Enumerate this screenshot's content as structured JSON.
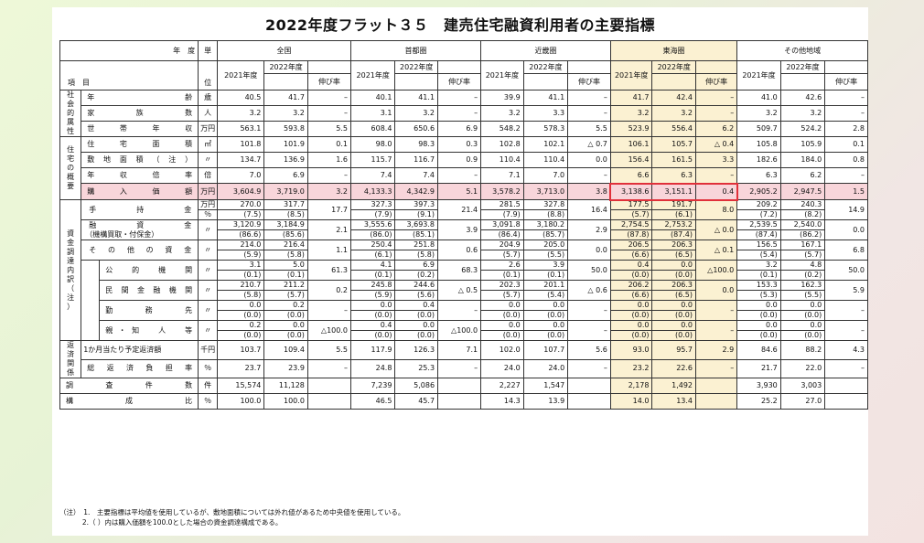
{
  "title": "2022年度フラット３５　建売住宅融資利用者の主要指標",
  "header": {
    "nendo": "年　度",
    "koumoku": "項　目",
    "tani_top": "単",
    "tani_bottom": "位",
    "regions": [
      "全国",
      "首都圏",
      "近畿圏",
      "東海圏",
      "その他地域"
    ],
    "y2021": "2021年度",
    "y2022": "2022年度",
    "growth": "伸び率"
  },
  "groups": {
    "shakai": "社会的属性",
    "jutaku": "住宅の概要",
    "shikin": "資金調達内訳（注）",
    "hensai": "返済関係"
  },
  "rows": [
    {
      "label": "年　　　齢",
      "unit": "歳",
      "v": [
        "40.5",
        "41.7",
        "–",
        "40.1",
        "41.1",
        "–",
        "39.9",
        "41.1",
        "–",
        "41.7",
        "42.4",
        "–",
        "41.0",
        "42.6",
        "–"
      ]
    },
    {
      "label": "家　族　数",
      "unit": "人",
      "v": [
        "3.2",
        "3.2",
        "–",
        "3.1",
        "3.2",
        "–",
        "3.2",
        "3.3",
        "–",
        "3.2",
        "3.2",
        "–",
        "3.2",
        "3.2",
        "–"
      ]
    },
    {
      "label": "世　帯　年　収",
      "unit": "万円",
      "v": [
        "563.1",
        "593.8",
        "5.5",
        "608.4",
        "650.6",
        "6.9",
        "548.2",
        "578.3",
        "5.5",
        "523.9",
        "556.4",
        "6.2",
        "509.7",
        "524.2",
        "2.8"
      ]
    },
    {
      "label": "住　宅　面　積",
      "unit": "㎡",
      "v": [
        "101.8",
        "101.9",
        "0.1",
        "98.0",
        "98.3",
        "0.3",
        "102.8",
        "102.1",
        "△ 0.7",
        "106.1",
        "105.7",
        "△ 0.4",
        "105.8",
        "105.9",
        "0.1"
      ]
    },
    {
      "label": "敷地面積（注）",
      "unit": "〃",
      "v": [
        "134.7",
        "136.9",
        "1.6",
        "115.7",
        "116.7",
        "0.9",
        "110.4",
        "110.4",
        "0.0",
        "156.4",
        "161.5",
        "3.3",
        "182.6",
        "184.0",
        "0.8"
      ]
    },
    {
      "label": "年　収　倍　率",
      "unit": "倍",
      "v": [
        "7.0",
        "6.9",
        "–",
        "7.4",
        "7.4",
        "–",
        "7.1",
        "7.0",
        "–",
        "6.6",
        "6.3",
        "–",
        "6.3",
        "6.2",
        "–"
      ]
    },
    {
      "label": "購　入　価　額",
      "unit": "万円",
      "v": [
        "3,604.9",
        "3,719.0",
        "3.2",
        "4,133.3",
        "4,342.9",
        "5.1",
        "3,578.2",
        "3,713.0",
        "3.8",
        "3,138.6",
        "3,151.1",
        "0.4",
        "2,905.2",
        "2,947.5",
        "1.5"
      ]
    },
    {
      "label": "手　持　金",
      "unit": "万円",
      "unit2": "％",
      "v": [
        "270.0",
        "317.7",
        "17.7",
        "327.3",
        "397.3",
        "21.4",
        "281.5",
        "327.8",
        "16.4",
        "177.5",
        "191.7",
        "8.0",
        "209.2",
        "240.3",
        "14.9"
      ],
      "p": [
        "7.5",
        "8.5",
        "7.9",
        "9.1",
        "7.9",
        "8.8",
        "5.7",
        "6.1",
        "7.2",
        "8.2"
      ]
    },
    {
      "label": "融　資　金",
      "sublabel": "（機構買取・付保金）",
      "unit": "〃",
      "v": [
        "3,120.9",
        "3,184.9",
        "2.1",
        "3,555.6",
        "3,693.8",
        "3.9",
        "3,091.8",
        "3,180.2",
        "2.9",
        "2,754.5",
        "2,753.2",
        "△ 0.0",
        "2,539.5",
        "2,540.0",
        "0.0"
      ],
      "p": [
        "86.6",
        "85.6",
        "86.0",
        "85.1",
        "86.4",
        "85.7",
        "87.8",
        "87.4",
        "87.4",
        "86.2"
      ]
    },
    {
      "label": "その他の資金",
      "unit": "〃",
      "v": [
        "214.0",
        "216.4",
        "1.1",
        "250.4",
        "251.8",
        "0.6",
        "204.9",
        "205.0",
        "0.0",
        "206.5",
        "206.3",
        "△ 0.1",
        "156.5",
        "167.1",
        "6.8"
      ],
      "p": [
        "5.9",
        "5.8",
        "6.1",
        "5.8",
        "5.7",
        "5.5",
        "6.6",
        "6.5",
        "5.4",
        "5.7"
      ]
    },
    {
      "label": "公　的　機　関",
      "unit": "〃",
      "v": [
        "3.1",
        "5.0",
        "61.3",
        "4.1",
        "6.9",
        "68.3",
        "2.6",
        "3.9",
        "50.0",
        "0.4",
        "0.0",
        "△100.0",
        "3.2",
        "4.8",
        "50.0"
      ],
      "p": [
        "0.1",
        "0.1",
        "0.1",
        "0.2",
        "0.1",
        "0.1",
        "0.0",
        "0.0",
        "0.1",
        "0.2"
      ]
    },
    {
      "label": "民間金融機関",
      "unit": "〃",
      "v": [
        "210.7",
        "211.2",
        "0.2",
        "245.8",
        "244.6",
        "△ 0.5",
        "202.3",
        "201.1",
        "△ 0.6",
        "206.2",
        "206.3",
        "0.0",
        "153.3",
        "162.3",
        "5.9"
      ],
      "p": [
        "5.8",
        "5.7",
        "5.9",
        "5.6",
        "5.7",
        "5.4",
        "6.6",
        "6.5",
        "5.3",
        "5.5"
      ]
    },
    {
      "label": "勤　務　先",
      "unit": "〃",
      "v": [
        "0.0",
        "0.2",
        "–",
        "0.0",
        "0.4",
        "–",
        "0.0",
        "0.0",
        "–",
        "0.0",
        "0.0",
        "–",
        "0.0",
        "0.0",
        "–"
      ],
      "p": [
        "0.0",
        "0.0",
        "0.0",
        "0.0",
        "0.0",
        "0.0",
        "0.0",
        "0.0",
        "0.0",
        "0.0"
      ]
    },
    {
      "label": "親・知　人　等",
      "unit": "〃",
      "v": [
        "0.2",
        "0.0",
        "△100.0",
        "0.4",
        "0.0",
        "△100.0",
        "0.0",
        "0.0",
        "–",
        "0.0",
        "0.0",
        "–",
        "0.0",
        "0.0",
        "–"
      ],
      "p": [
        "0.0",
        "0.0",
        "0.0",
        "0.0",
        "0.0",
        "0.0",
        "0.0",
        "0.0",
        "0.0",
        "0.0"
      ]
    },
    {
      "label": "1か月当たり予定返済額",
      "unit": "千円",
      "v": [
        "103.7",
        "109.4",
        "5.5",
        "117.9",
        "126.3",
        "7.1",
        "102.0",
        "107.7",
        "5.6",
        "93.0",
        "95.7",
        "2.9",
        "84.6",
        "88.2",
        "4.3"
      ]
    },
    {
      "label": "総　返　済　負　担　率",
      "unit": "％",
      "v": [
        "23.7",
        "23.9",
        "–",
        "24.8",
        "25.3",
        "–",
        "24.0",
        "24.0",
        "–",
        "23.2",
        "22.6",
        "–",
        "21.7",
        "22.0",
        "–"
      ]
    },
    {
      "label": "調　査　件　数",
      "unit": "件",
      "v": [
        "15,574",
        "11,128",
        "",
        "7,239",
        "5,086",
        "",
        "2,227",
        "1,547",
        "",
        "2,178",
        "1,492",
        "",
        "3,930",
        "3,003",
        ""
      ]
    },
    {
      "label": "構　成　比",
      "unit": "％",
      "v": [
        "100.0",
        "100.0",
        "",
        "46.5",
        "45.7",
        "",
        "14.3",
        "13.9",
        "",
        "14.0",
        "13.4",
        "",
        "25.2",
        "27.0",
        ""
      ]
    }
  ],
  "notes": [
    "（注）　1.　主要指標は平均値を使用しているが、敷地面積については外れ値があるため中央値を使用している。",
    "　　　 2.（ ）内は購入価額を100.0とした場合の資金調達構成である。"
  ]
}
